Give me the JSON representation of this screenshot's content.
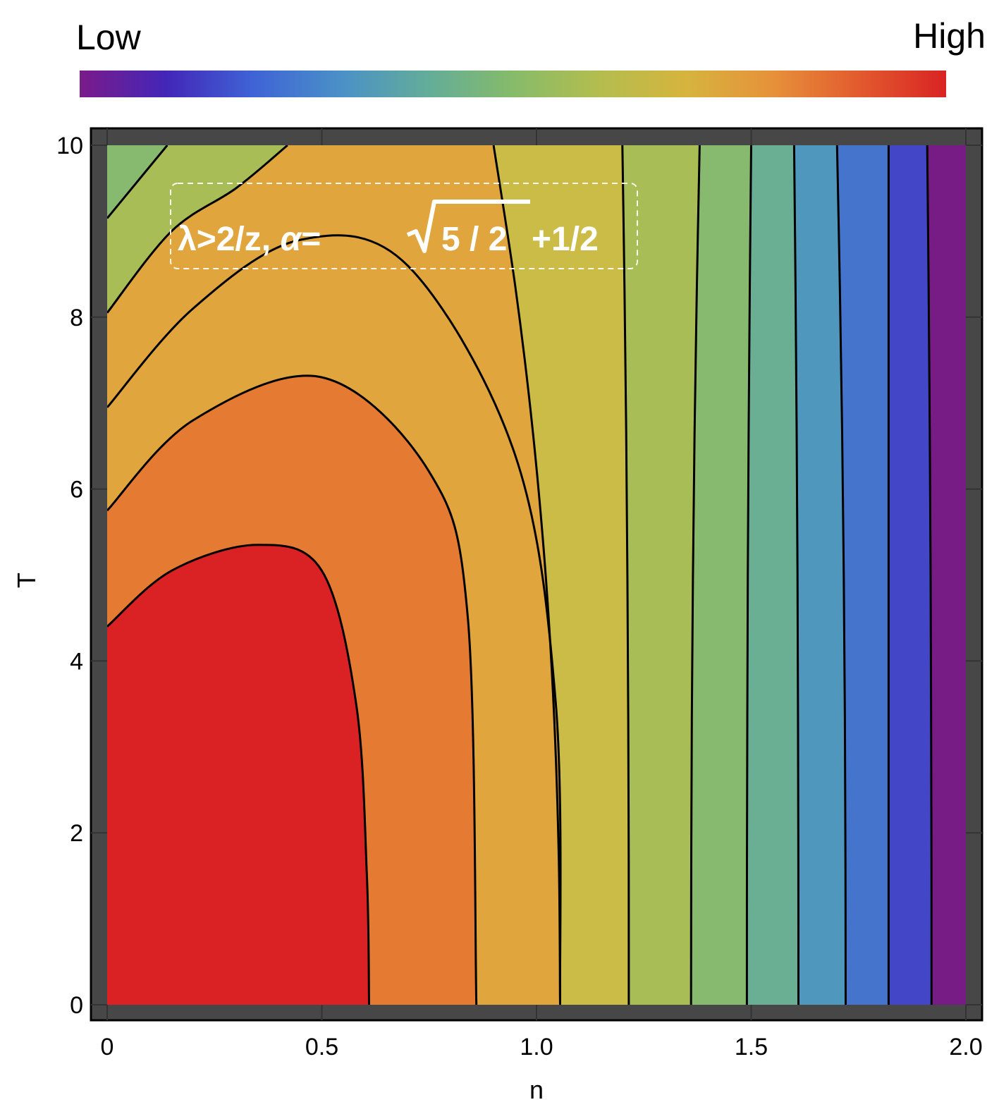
{
  "legend": {
    "low_label": "Low",
    "high_label": "High",
    "gradient_colors": [
      "#7a1b8a",
      "#4326b8",
      "#3f63d6",
      "#4a90c8",
      "#62ac9a",
      "#86bb6a",
      "#b4bd4e",
      "#d6b43e",
      "#e6913a",
      "#e25a2e",
      "#d92424"
    ]
  },
  "chart_data": {
    "type": "contour",
    "xlabel": "n",
    "ylabel": "T",
    "xlim": [
      0,
      2.0
    ],
    "ylim": [
      0,
      10
    ],
    "x_ticks": [
      0,
      0.5,
      1.0,
      1.5,
      2.0
    ],
    "x_tick_labels": [
      "0",
      "0.5",
      "1.0",
      "1.5",
      "2.0"
    ],
    "y_ticks": [
      0,
      2,
      4,
      6,
      8,
      10
    ],
    "y_tick_labels": [
      "0",
      "2",
      "4",
      "6",
      "8",
      "10"
    ],
    "grid": true,
    "annotation": "λ>2/z, α=√5/2+1/2",
    "annotation_parts": {
      "prefix": "λ>2/z, ",
      "alpha": "α",
      "equals": "=",
      "radicand": "5 / 2",
      "suffix": "+1/2"
    },
    "band_colors": [
      "#da2123",
      "#e57b33",
      "#e0a53d",
      "#cbbb47",
      "#a9bd57",
      "#87ba6e",
      "#6aae93",
      "#4f97bc",
      "#4474cc",
      "#4246c7",
      "#771c84"
    ],
    "contour_bottom_n": [
      0.61,
      0.86,
      1.055,
      1.215,
      1.36,
      1.49,
      1.61,
      1.72,
      1.82,
      1.92
    ],
    "inner_contours": [
      {
        "points": [
          [
            0,
            4.4
          ],
          [
            0.15,
            5.05
          ],
          [
            0.35,
            5.35
          ],
          [
            0.5,
            5.05
          ],
          [
            0.58,
            3.5
          ],
          [
            0.605,
            1.5
          ],
          [
            0.61,
            0
          ]
        ]
      },
      {
        "points": [
          [
            0,
            5.75
          ],
          [
            0.2,
            6.8
          ],
          [
            0.5,
            7.3
          ],
          [
            0.75,
            6.2
          ],
          [
            0.84,
            4.5
          ],
          [
            0.86,
            0
          ]
        ]
      },
      {
        "points": [
          [
            0,
            6.95
          ],
          [
            0.2,
            8.1
          ],
          [
            0.45,
            8.9
          ],
          [
            0.7,
            8.6
          ],
          [
            0.95,
            6.4
          ],
          [
            1.045,
            3.5
          ],
          [
            1.055,
            0
          ]
        ]
      },
      {
        "points": [
          [
            0,
            8.05
          ],
          [
            0.15,
            9.0
          ],
          [
            0.3,
            9.5
          ],
          [
            0.42,
            10
          ]
        ]
      },
      {
        "points": [
          [
            0,
            9.15
          ],
          [
            0.14,
            10
          ]
        ]
      }
    ],
    "outer_contour_tops_n": [
      0.9,
      1.2,
      1.38,
      1.5,
      1.6,
      1.7,
      1.82,
      1.91
    ]
  }
}
